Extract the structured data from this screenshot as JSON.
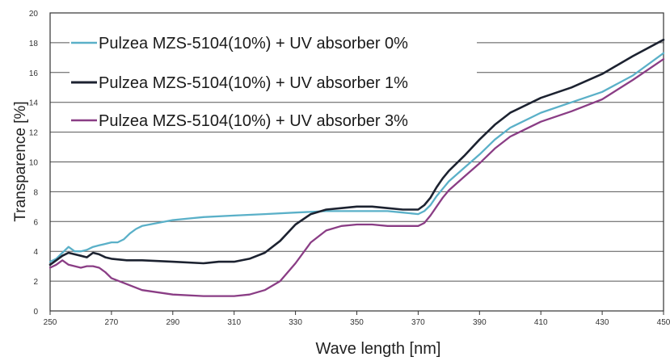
{
  "chart_data": {
    "type": "line",
    "title": "",
    "xlabel": "Wave length  [nm]",
    "ylabel": "Transparence  [%]",
    "xlim": [
      250,
      450
    ],
    "ylim": [
      0,
      20
    ],
    "x_ticks": [
      "250",
      "270",
      "290",
      "310",
      "330",
      "350",
      "370",
      "390",
      "410",
      "430",
      "450"
    ],
    "y_ticks": [
      "0",
      "2",
      "4",
      "6",
      "8",
      "10",
      "12",
      "14",
      "16",
      "18",
      "20"
    ],
    "grid": "horizontal",
    "legend_position": "top-left",
    "series": [
      {
        "name": "Pulzea MZS-5104(10%) + UV absorber 0%",
        "color": "#5ab0c8",
        "x": [
          250,
          252,
          254,
          256,
          258,
          260,
          262,
          264,
          266,
          268,
          270,
          272,
          274,
          276,
          278,
          280,
          285,
          290,
          295,
          300,
          310,
          320,
          330,
          340,
          350,
          360,
          365,
          370,
          372,
          374,
          376,
          378,
          380,
          385,
          390,
          395,
          400,
          410,
          420,
          430,
          440,
          450
        ],
        "y": [
          3.3,
          3.5,
          3.9,
          4.3,
          4.0,
          4.0,
          4.1,
          4.3,
          4.4,
          4.5,
          4.6,
          4.6,
          4.8,
          5.2,
          5.5,
          5.7,
          5.9,
          6.1,
          6.2,
          6.3,
          6.4,
          6.5,
          6.6,
          6.7,
          6.7,
          6.7,
          6.6,
          6.5,
          6.7,
          7.1,
          7.7,
          8.2,
          8.7,
          9.6,
          10.5,
          11.5,
          12.3,
          13.3,
          14.0,
          14.7,
          15.8,
          17.3
        ]
      },
      {
        "name": "Pulzea MZS-5104(10%) + UV absorber 1%",
        "color": "#1c2230",
        "x": [
          250,
          252,
          254,
          256,
          258,
          260,
          262,
          264,
          266,
          268,
          270,
          275,
          280,
          290,
          300,
          305,
          310,
          315,
          320,
          325,
          330,
          335,
          340,
          345,
          350,
          355,
          360,
          365,
          370,
          372,
          374,
          376,
          378,
          380,
          385,
          390,
          395,
          400,
          410,
          420,
          430,
          440,
          450
        ],
        "y": [
          3.1,
          3.4,
          3.7,
          3.9,
          3.8,
          3.7,
          3.6,
          3.9,
          3.8,
          3.6,
          3.5,
          3.4,
          3.4,
          3.3,
          3.2,
          3.3,
          3.3,
          3.5,
          3.9,
          4.7,
          5.8,
          6.5,
          6.8,
          6.9,
          7.0,
          7.0,
          6.9,
          6.8,
          6.8,
          7.1,
          7.6,
          8.3,
          8.9,
          9.4,
          10.4,
          11.5,
          12.5,
          13.3,
          14.3,
          15.0,
          15.9,
          17.1,
          18.2
        ]
      },
      {
        "name": "Pulzea MZS-5104(10%) + UV absorber 3%",
        "color": "#8a3d85",
        "x": [
          250,
          252,
          254,
          256,
          258,
          260,
          262,
          264,
          266,
          268,
          270,
          275,
          280,
          290,
          300,
          310,
          315,
          320,
          325,
          330,
          335,
          340,
          345,
          350,
          355,
          360,
          365,
          370,
          372,
          374,
          376,
          378,
          380,
          385,
          390,
          395,
          400,
          410,
          420,
          430,
          440,
          450
        ],
        "y": [
          2.9,
          3.1,
          3.4,
          3.1,
          3.0,
          2.9,
          3.0,
          3.0,
          2.9,
          2.6,
          2.2,
          1.8,
          1.4,
          1.1,
          1.0,
          1.0,
          1.1,
          1.4,
          2.0,
          3.2,
          4.6,
          5.4,
          5.7,
          5.8,
          5.8,
          5.7,
          5.7,
          5.7,
          5.9,
          6.4,
          7.0,
          7.6,
          8.1,
          9.0,
          9.9,
          10.9,
          11.7,
          12.7,
          13.4,
          14.2,
          15.5,
          16.9
        ]
      }
    ]
  }
}
